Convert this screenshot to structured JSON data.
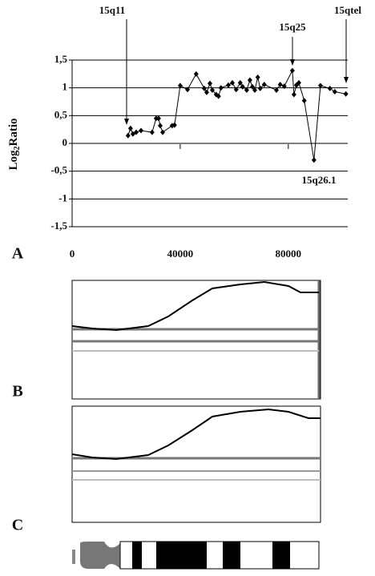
{
  "chart_data": {
    "type": "line",
    "y_label": [
      "Log",
      "2",
      "Ratio"
    ],
    "panel_labels": [
      "A",
      "B",
      "C"
    ],
    "annotations": [
      "15q11",
      "15q25",
      "15qtel",
      "15q26.1"
    ],
    "xlim": [
      0,
      102000
    ],
    "xticks": [
      0,
      40000,
      80000
    ],
    "ylim": [
      -1.5,
      1.5
    ],
    "yticks": [
      {
        "value": -1.5,
        "label": "-1,5"
      },
      -1,
      {
        "value": -0.5,
        "label": "-0,5"
      },
      0,
      {
        "value": 0.5,
        "label": "0,5"
      },
      1,
      {
        "value": 1.5,
        "label": "1,5"
      }
    ],
    "grid": true,
    "color": "#000000",
    "x": [
      20700,
      21600,
      22500,
      23700,
      25500,
      29600,
      31100,
      32000,
      32600,
      33500,
      37000,
      37900,
      40000,
      42700,
      45900,
      48900,
      49800,
      51000,
      51900,
      53300,
      54200,
      55100,
      57800,
      59300,
      60700,
      62200,
      63100,
      64600,
      65800,
      66700,
      67600,
      68700,
      69600,
      71100,
      75600,
      77000,
      78500,
      81500,
      82100,
      83000,
      83900,
      85900,
      89500,
      91900,
      95400,
      97200,
      101300
    ],
    "values": [
      0.14,
      0.27,
      0.17,
      0.2,
      0.23,
      0.2,
      0.45,
      0.45,
      0.32,
      0.2,
      0.32,
      0.33,
      1.04,
      0.97,
      1.25,
      0.99,
      0.92,
      1.08,
      0.96,
      0.88,
      0.85,
      1.0,
      1.05,
      1.09,
      0.97,
      1.09,
      1.02,
      0.96,
      1.14,
      1.02,
      0.96,
      1.19,
      0.99,
      1.06,
      0.96,
      1.06,
      1.03,
      1.31,
      0.88,
      1.05,
      1.09,
      0.77,
      -0.3,
      1.04,
      0.99,
      0.93,
      0.89
    ]
  }
}
